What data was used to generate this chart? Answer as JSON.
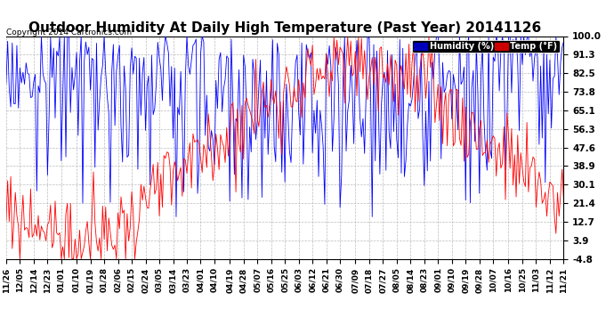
{
  "title": "Outdoor Humidity At Daily High Temperature (Past Year) 20141126",
  "copyright": "Copyright 2014 Cartronics.com",
  "legend_humidity": "Humidity (%)",
  "legend_temp": "Temp (°F)",
  "humidity_color": "blue",
  "temp_color": "red",
  "legend_humidity_bg": "#0000bb",
  "legend_temp_bg": "#cc0000",
  "ylim": [
    -4.8,
    100.0
  ],
  "yticks": [
    100.0,
    91.3,
    82.5,
    73.8,
    65.1,
    56.3,
    47.6,
    38.9,
    30.1,
    21.4,
    12.7,
    3.9,
    -4.8
  ],
  "background_color": "white",
  "grid_color": "#bbbbbb",
  "title_fontsize": 11,
  "xlabel_fontsize": 6.5,
  "ylabel_fontsize": 7.5,
  "n_points": 365,
  "x_tick_dates": [
    "11/26",
    "12/05",
    "12/14",
    "12/23",
    "01/01",
    "01/10",
    "01/19",
    "01/28",
    "02/06",
    "02/15",
    "02/24",
    "03/05",
    "03/14",
    "03/23",
    "04/01",
    "04/10",
    "04/19",
    "04/28",
    "05/07",
    "05/16",
    "05/25",
    "06/03",
    "06/12",
    "06/21",
    "06/30",
    "07/09",
    "07/18",
    "07/27",
    "08/05",
    "08/14",
    "08/23",
    "09/01",
    "09/10",
    "09/19",
    "09/28",
    "10/07",
    "10/16",
    "10/25",
    "11/03",
    "11/12",
    "11/21"
  ],
  "seed": 99
}
